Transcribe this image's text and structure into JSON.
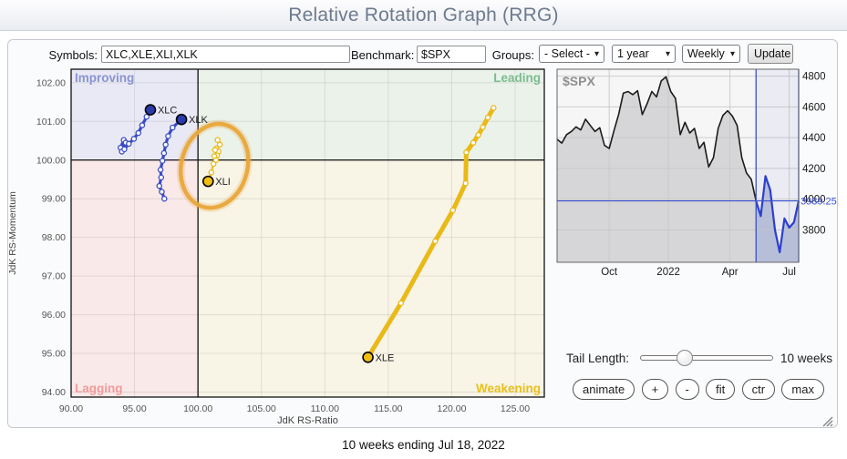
{
  "page": {
    "title": "Relative Rotation Graph (RRG)",
    "footer_caption": "10 weeks ending Jul 18, 2022"
  },
  "toolbar": {
    "symbols_label": "Symbols:",
    "symbols_value": "XLC,XLE,XLI,XLK",
    "benchmark_label": "Benchmark:",
    "benchmark_value": "$SPX",
    "groups_label": "Groups:",
    "groups_select": "- Select -",
    "period_select": "1 year",
    "frequency_select": "Weekly",
    "update_label": "Update"
  },
  "controls": {
    "tail_length_label": "Tail Length:",
    "tail_length_value": "10 weeks",
    "buttons": [
      {
        "id": "animate",
        "label": "animate"
      },
      {
        "id": "zoom-in",
        "label": "+"
      },
      {
        "id": "zoom-out",
        "label": "-"
      },
      {
        "id": "fit",
        "label": "fit"
      },
      {
        "id": "ctr",
        "label": "ctr"
      },
      {
        "id": "max",
        "label": "max"
      }
    ]
  },
  "chart_data": [
    {
      "type": "scatter",
      "name": "rrg-rotation-graph",
      "xlabel": "JdK RS-Ratio",
      "ylabel": "JdK RS-Momentum",
      "xlim": [
        90,
        127.3
      ],
      "ylim": [
        93.87,
        102.35
      ],
      "center": [
        100,
        100
      ],
      "grid": true,
      "xticks": [
        90,
        95,
        100,
        105,
        110,
        115,
        120,
        125
      ],
      "xtick_labels": [
        "90.00",
        "95.00",
        "100.00",
        "105.00",
        "110.00",
        "115.00",
        "120.00",
        "125.00"
      ],
      "yticks": [
        94,
        95,
        96,
        97,
        98,
        99,
        100,
        101,
        102
      ],
      "ytick_labels": [
        "94.00",
        "95.00",
        "96.00",
        "97.00",
        "98.00",
        "99.00",
        "100.00",
        "101.00",
        "102.00"
      ],
      "quadrants": [
        {
          "name": "Improving",
          "position": "top-left",
          "bg": "#e9e9f5",
          "label_color": "#8a93cf"
        },
        {
          "name": "Leading",
          "position": "top-right",
          "bg": "#eaf2ea",
          "label_color": "#7cbd8e"
        },
        {
          "name": "Lagging",
          "position": "bottom-left",
          "bg": "#f9e9e9",
          "label_color": "#f29b9b"
        },
        {
          "name": "Weakening",
          "position": "bottom-right",
          "bg": "#f8f4e6",
          "label_color": "#e9c01c"
        }
      ],
      "series": [
        {
          "name": "XLC",
          "color": "#3a4cc4",
          "head_fill": "#2a3aad",
          "width": 3.2,
          "tail": [
            [
              93.9,
              100.32
            ],
            [
              94.15,
              100.52
            ],
            [
              94.0,
              100.22
            ],
            [
              94.3,
              100.45
            ],
            [
              94.2,
              100.28
            ],
            [
              94.55,
              100.42
            ],
            [
              94.95,
              100.55
            ],
            [
              95.3,
              100.7
            ],
            [
              95.6,
              100.9
            ],
            [
              95.95,
              101.12
            ],
            [
              96.25,
              101.3
            ]
          ]
        },
        {
          "name": "XLK",
          "color": "#3a4cc4",
          "head_fill": "#2a3aad",
          "width": 3.2,
          "tail": [
            [
              97.35,
              99.0
            ],
            [
              97.15,
              99.18
            ],
            [
              96.95,
              99.33
            ],
            [
              97.1,
              99.55
            ],
            [
              97.05,
              99.75
            ],
            [
              97.2,
              99.98
            ],
            [
              97.32,
              100.18
            ],
            [
              97.45,
              100.4
            ],
            [
              97.65,
              100.62
            ],
            [
              98.0,
              100.84
            ],
            [
              98.7,
              101.05
            ]
          ]
        },
        {
          "name": "XLI",
          "color": "#e9b917",
          "head_fill": "#f0c010",
          "width": 2,
          "tail": [
            [
              101.55,
              100.52
            ],
            [
              101.72,
              100.4
            ],
            [
              101.45,
              100.3
            ],
            [
              101.62,
              100.22
            ],
            [
              101.35,
              100.26
            ],
            [
              101.5,
              100.12
            ],
            [
              101.28,
              100.1
            ],
            [
              101.42,
              100.0
            ],
            [
              101.22,
              99.9
            ],
            [
              101.05,
              99.68
            ],
            [
              100.8,
              99.45
            ]
          ]
        },
        {
          "name": "XLE",
          "color": "#e9b917",
          "head_fill": "#f0c010",
          "width": 5,
          "tail": [
            [
              123.3,
              101.35
            ],
            [
              122.85,
              101.1
            ],
            [
              122.45,
              100.85
            ],
            [
              122.1,
              100.65
            ],
            [
              121.7,
              100.45
            ],
            [
              121.15,
              100.2
            ],
            [
              121.1,
              99.4
            ],
            [
              120.1,
              98.7
            ],
            [
              118.7,
              97.9
            ],
            [
              116.0,
              96.3
            ],
            [
              113.4,
              94.9
            ]
          ]
        }
      ],
      "annotation": {
        "shape": "ellipse",
        "cx": 101.3,
        "cy": 99.85,
        "rx": 2.6,
        "ry": 1.1,
        "rotate_deg": 15,
        "color": "#e9a63b"
      }
    },
    {
      "type": "line",
      "name": "spx-benchmark-mini-chart",
      "title": "$SPX",
      "ylim": [
        3590,
        4845
      ],
      "yticks": [
        3800,
        4000,
        4200,
        4400,
        4600,
        4800
      ],
      "ytick_labels": [
        "3800",
        "4000",
        "4200",
        "4400",
        "4600",
        "4800"
      ],
      "xticks": [
        {
          "label": "Oct",
          "index": 11
        },
        {
          "label": "2022",
          "index": 23.5
        },
        {
          "label": "Apr",
          "index": 36.5
        },
        {
          "label": "Jul",
          "index": 49
        }
      ],
      "values": [
        4390,
        4365,
        4420,
        4440,
        4470,
        4450,
        4520,
        4480,
        4440,
        4465,
        4350,
        4330,
        4445,
        4550,
        4690,
        4700,
        4680,
        4705,
        4550,
        4620,
        4700,
        4665,
        4770,
        4795,
        4700,
        4655,
        4420,
        4500,
        4430,
        4460,
        4330,
        4370,
        4210,
        4270,
        4460,
        4545,
        4575,
        4540,
        4480,
        4270,
        4170,
        4130,
        3990,
        3890,
        4150,
        4060,
        3800,
        3655,
        3875,
        3815,
        3850,
        3989
      ],
      "highlight_start_index": 42,
      "line_color": "#1b1b1b",
      "highlight_color": "#2b3fd0",
      "level_line": {
        "value": 3989.25,
        "label": "3989.25",
        "color": "#3a4fd0"
      }
    }
  ]
}
